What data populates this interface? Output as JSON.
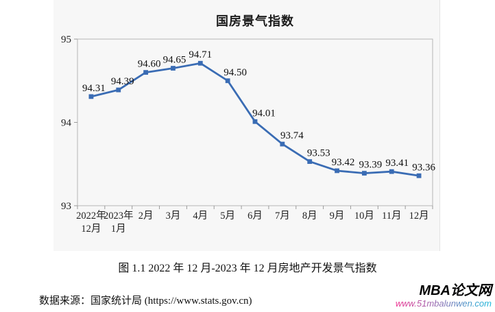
{
  "figure": {
    "caption": "图 1.1 2022 年 12 月-2023 年 12 月房地产开发景气指数",
    "source": "数据来源：国家统计局 (https://www.stats.gov.cn)"
  },
  "watermark": {
    "brand": "MBA论文网",
    "url": "www.51mbalunwen.com",
    "url_color_start": "#ef2f90",
    "url_color_end": "#15b9dc"
  },
  "chart_data": {
    "type": "line",
    "title": "国房景气指数",
    "categories": [
      "2022年\n12月",
      "2023年\n1月",
      "2月",
      "3月",
      "4月",
      "5月",
      "6月",
      "7月",
      "8月",
      "9月",
      "10月",
      "11月",
      "12月"
    ],
    "values": [
      94.31,
      94.39,
      94.6,
      94.65,
      94.71,
      94.5,
      94.01,
      93.74,
      93.53,
      93.42,
      93.39,
      93.41,
      93.36
    ],
    "data_labels": [
      "94.31",
      "94.39",
      "94.60",
      "94.65",
      "94.71",
      "94.50",
      "94.01",
      "93.74",
      "93.53",
      "93.42",
      "93.39",
      "93.41",
      "93.36"
    ],
    "ylim": [
      93,
      95
    ],
    "yticks": [
      93,
      94,
      95
    ],
    "grid": false,
    "legend": "none",
    "line_color": "#3a6cb4",
    "axis_color": "#b5b5b5",
    "tick_color": "#9a9a9a"
  }
}
